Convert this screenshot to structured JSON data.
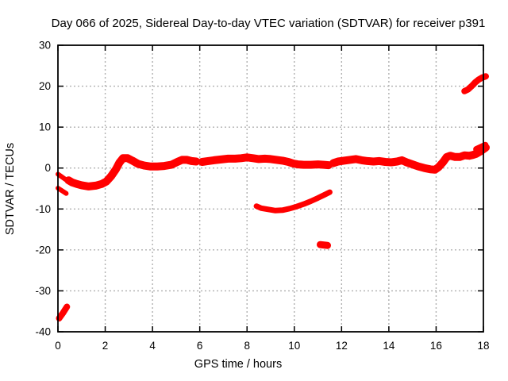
{
  "chart_data": {
    "type": "scatter",
    "title": "Day 066 of 2025, Sidereal Day-to-day VTEC variation (SDTVAR) for receiver p391",
    "xlabel": "GPS time / hours",
    "ylabel": "SDTVAR / TECUs",
    "xlim": [
      0,
      18
    ],
    "ylim": [
      -40,
      30
    ],
    "xticks": [
      0,
      2,
      4,
      6,
      8,
      10,
      12,
      14,
      16,
      18
    ],
    "yticks": [
      30,
      20,
      10,
      0,
      -10,
      -20,
      -30,
      -40
    ],
    "grid": true,
    "legend": "none",
    "colors": {
      "series": "#ff0000",
      "grid": "#b0b0b0",
      "axis": "#000000",
      "background": "#ffffff"
    },
    "segments": [
      {
        "name": "start-strand-upper",
        "stroke_width": 6,
        "points": [
          [
            0.0,
            -1.5
          ],
          [
            0.15,
            -2.1
          ],
          [
            0.35,
            -2.9
          ]
        ]
      },
      {
        "name": "start-strand-lower",
        "stroke_width": 6,
        "points": [
          [
            0.0,
            -4.9
          ],
          [
            0.35,
            -6.2
          ]
        ]
      },
      {
        "name": "bottom-left-segment",
        "stroke_width": 8,
        "points": [
          [
            0.05,
            -36.7
          ],
          [
            0.2,
            -35.5
          ],
          [
            0.38,
            -33.9
          ]
        ]
      },
      {
        "name": "main-band-segment-1",
        "stroke_width": 10,
        "points": [
          [
            0.45,
            -3.0
          ],
          [
            0.6,
            -3.5
          ],
          [
            0.8,
            -3.9
          ],
          [
            1.0,
            -4.2
          ],
          [
            1.3,
            -4.5
          ],
          [
            1.6,
            -4.3
          ],
          [
            1.85,
            -3.9
          ],
          [
            2.05,
            -3.3
          ],
          [
            2.25,
            -2.0
          ],
          [
            2.45,
            -0.3
          ],
          [
            2.6,
            1.3
          ],
          [
            2.75,
            2.4
          ],
          [
            2.95,
            2.4
          ],
          [
            3.15,
            1.8
          ],
          [
            3.4,
            1.0
          ],
          [
            3.65,
            0.6
          ],
          [
            3.9,
            0.4
          ],
          [
            4.2,
            0.4
          ],
          [
            4.5,
            0.5
          ],
          [
            4.8,
            0.8
          ],
          [
            5.05,
            1.5
          ],
          [
            5.25,
            2.0
          ],
          [
            5.45,
            2.0
          ],
          [
            5.65,
            1.7
          ],
          [
            5.85,
            1.6
          ]
        ]
      },
      {
        "name": "main-band-segment-2",
        "stroke_width": 10,
        "points": [
          [
            6.1,
            1.5
          ],
          [
            6.35,
            1.7
          ],
          [
            6.6,
            1.9
          ],
          [
            6.9,
            2.1
          ],
          [
            7.2,
            2.3
          ],
          [
            7.5,
            2.3
          ],
          [
            7.75,
            2.4
          ],
          [
            8.0,
            2.6
          ],
          [
            8.25,
            2.4
          ],
          [
            8.5,
            2.2
          ],
          [
            8.75,
            2.3
          ],
          [
            9.0,
            2.2
          ],
          [
            9.25,
            2.0
          ],
          [
            9.5,
            1.8
          ],
          [
            9.75,
            1.5
          ],
          [
            9.95,
            1.1
          ],
          [
            10.15,
            0.9
          ],
          [
            10.4,
            0.8
          ],
          [
            10.7,
            0.8
          ],
          [
            11.0,
            0.9
          ],
          [
            11.25,
            0.8
          ],
          [
            11.45,
            0.7
          ]
        ]
      },
      {
        "name": "main-band-segment-3",
        "stroke_width": 10,
        "points": [
          [
            11.65,
            1.2
          ],
          [
            11.85,
            1.6
          ],
          [
            12.1,
            1.8
          ],
          [
            12.35,
            2.0
          ],
          [
            12.6,
            2.2
          ],
          [
            12.85,
            1.9
          ],
          [
            13.1,
            1.7
          ],
          [
            13.35,
            1.6
          ],
          [
            13.6,
            1.7
          ],
          [
            13.85,
            1.5
          ],
          [
            14.1,
            1.4
          ],
          [
            14.35,
            1.6
          ],
          [
            14.55,
            1.9
          ],
          [
            14.75,
            1.4
          ],
          [
            15.0,
            0.9
          ],
          [
            15.25,
            0.4
          ],
          [
            15.5,
            0.0
          ],
          [
            15.75,
            -0.3
          ],
          [
            15.95,
            -0.4
          ],
          [
            16.1,
            0.2
          ],
          [
            16.3,
            1.5
          ],
          [
            16.45,
            2.7
          ],
          [
            16.6,
            3.0
          ],
          [
            16.8,
            2.7
          ],
          [
            17.0,
            2.7
          ],
          [
            17.2,
            3.1
          ],
          [
            17.4,
            3.0
          ],
          [
            17.55,
            3.2
          ],
          [
            17.7,
            3.5
          ],
          [
            17.85,
            4.0
          ],
          [
            18.0,
            4.6
          ],
          [
            18.1,
            5.0
          ]
        ]
      },
      {
        "name": "main-band-fanout-end",
        "stroke_width": 8,
        "points": [
          [
            17.7,
            4.6
          ],
          [
            18.08,
            5.6
          ]
        ]
      },
      {
        "name": "secondary-arc",
        "stroke_width": 7,
        "points": [
          [
            8.4,
            -9.3
          ],
          [
            8.6,
            -9.8
          ],
          [
            8.9,
            -10.1
          ],
          [
            9.2,
            -10.4
          ],
          [
            9.5,
            -10.3
          ],
          [
            9.8,
            -9.9
          ],
          [
            10.1,
            -9.4
          ],
          [
            10.4,
            -8.8
          ],
          [
            10.7,
            -8.1
          ],
          [
            11.0,
            -7.3
          ],
          [
            11.25,
            -6.6
          ],
          [
            11.5,
            -5.9
          ]
        ]
      },
      {
        "name": "outlier-blob",
        "stroke_width": 9,
        "points": [
          [
            11.1,
            -18.7
          ],
          [
            11.4,
            -18.9
          ]
        ]
      },
      {
        "name": "top-right-segment",
        "stroke_width": 8,
        "points": [
          [
            17.2,
            18.8
          ],
          [
            17.35,
            19.2
          ],
          [
            17.5,
            20.0
          ],
          [
            17.65,
            20.9
          ],
          [
            17.8,
            21.6
          ],
          [
            17.95,
            22.1
          ],
          [
            18.1,
            22.4
          ]
        ]
      }
    ]
  }
}
